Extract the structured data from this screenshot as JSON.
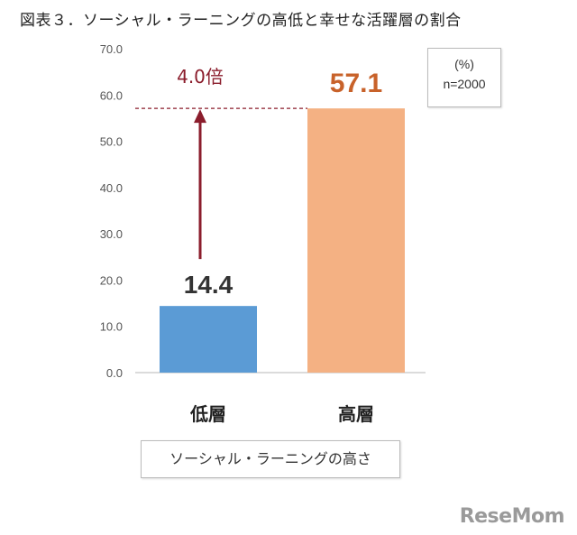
{
  "title": "図表３．ソーシャル・ラーニングの高低と幸せな活躍層の割合",
  "unit_label": "(%)",
  "sample_label": "n=2000",
  "x_axis_label": "ソーシャル・ラーニングの高さ",
  "ratio_label": "4.0倍",
  "logo_text": "ReseMom",
  "colors": {
    "low_bar": "#5b9bd5",
    "high_bar": "#f4b183",
    "arrow": "#8b1d2c"
  },
  "chart_data": {
    "type": "bar",
    "categories": [
      "低層",
      "高層"
    ],
    "values": [
      14.4,
      57.1
    ],
    "value_labels": [
      "14.4",
      "57.1"
    ],
    "ylim": [
      0,
      70
    ],
    "yticks": [
      "0.0",
      "10.0",
      "20.0",
      "30.0",
      "40.0",
      "50.0",
      "60.0",
      "70.0"
    ],
    "grid": false
  }
}
